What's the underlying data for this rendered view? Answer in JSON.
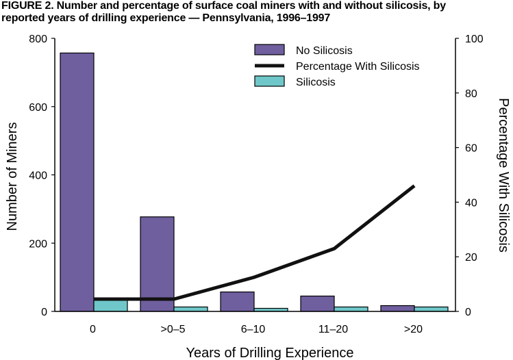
{
  "figure": {
    "title_line1": "FIGURE 2. Number and percentage of surface coal miners with and without silicosis, by",
    "title_line2": "reported years of drilling experience — Pennsylvania, 1996–1997"
  },
  "chart_data": {
    "type": "bar",
    "categories": [
      "0",
      ">0–5",
      "6–10",
      "11–20",
      ">20"
    ],
    "series": [
      {
        "name": "No Silicosis",
        "kind": "bar",
        "axis": "left",
        "color": "#6f5f9e",
        "values": [
          757,
          277,
          57,
          45,
          17
        ]
      },
      {
        "name": "Silicosis",
        "kind": "bar",
        "axis": "left",
        "color": "#6fc7c9",
        "values": [
          33,
          13,
          9,
          13,
          13
        ]
      },
      {
        "name": "Percentage With Silicosis",
        "kind": "line",
        "axis": "right",
        "color": "#111111",
        "values": [
          4.5,
          4.5,
          12.5,
          23,
          46
        ]
      }
    ],
    "legend_order": [
      "No Silicosis",
      "Percentage With Silicosis",
      "Silicosis"
    ],
    "xlabel": "Years of Drilling Experience",
    "ylabel": "Number of Miners",
    "y2label": "Percentage With Silicosis",
    "ylim": [
      0,
      800
    ],
    "y2lim": [
      0,
      100
    ],
    "yticks": [
      0,
      200,
      400,
      600,
      800
    ],
    "y2ticks": [
      0,
      20,
      40,
      60,
      80,
      100
    ],
    "grid": false,
    "legend_position": "top-right"
  }
}
